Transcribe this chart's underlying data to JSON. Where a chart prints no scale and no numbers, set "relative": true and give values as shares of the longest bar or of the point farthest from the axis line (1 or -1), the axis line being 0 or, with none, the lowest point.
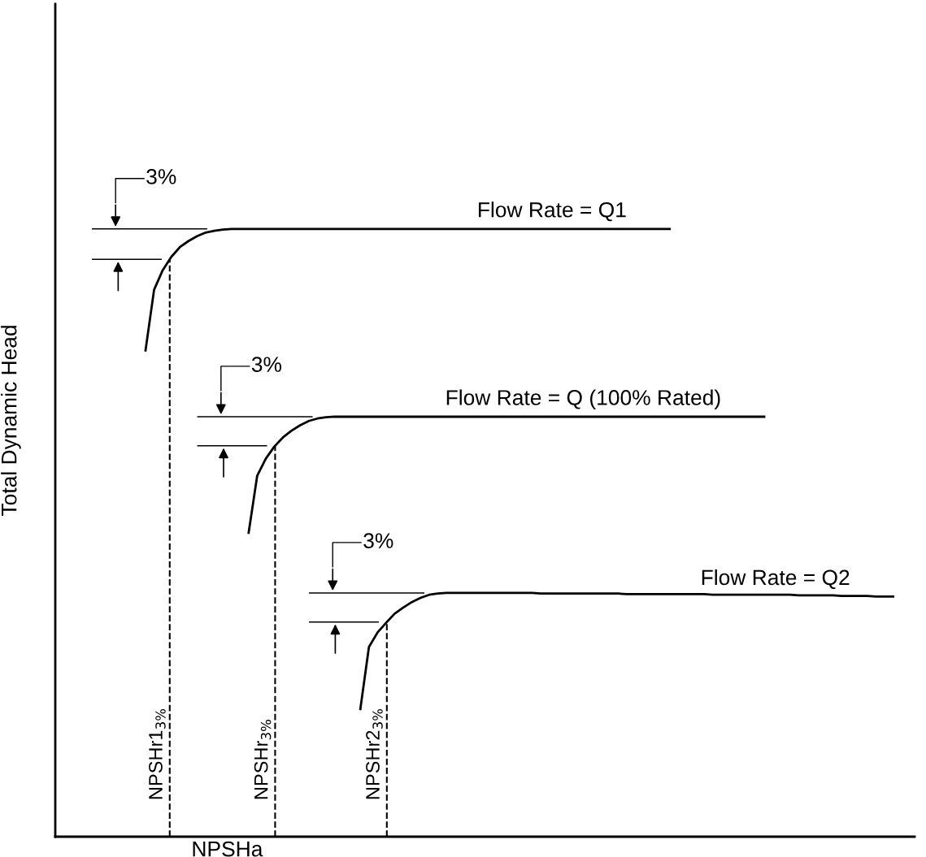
{
  "chart_data": {
    "type": "line",
    "relative": true,
    "xlabel": "NPSHa",
    "ylabel": "Total Dynamic Head",
    "tick_labels": false,
    "marker": "none",
    "line_style": "solid",
    "categories": [
      null,
      null,
      null,
      null,
      null,
      null,
      null,
      null,
      null,
      null,
      null,
      null,
      null,
      null,
      null,
      null,
      null,
      null,
      null,
      null,
      null,
      null,
      null,
      null,
      null,
      null,
      null,
      null,
      null,
      null,
      null,
      null,
      null,
      null,
      null,
      null,
      null,
      null,
      null,
      null,
      null,
      null,
      null,
      null,
      null,
      null,
      null,
      null,
      null,
      null,
      null,
      null,
      null,
      null,
      null,
      null,
      null,
      null,
      null,
      null,
      null,
      null,
      null,
      null,
      null,
      null,
      null,
      null,
      null,
      null,
      null,
      null,
      null,
      null,
      null,
      null,
      null,
      null,
      null,
      null,
      null,
      null,
      null,
      null,
      null,
      null,
      null,
      null,
      null,
      null,
      null,
      null,
      null,
      null,
      null,
      null,
      null,
      null,
      null,
      null
    ],
    "series": [
      {
        "name": "Flow Rate = Q1",
        "color": "#000000",
        "values": [
          null,
          null,
          null,
          null,
          null,
          null,
          null,
          null,
          null,
          null,
          0.8,
          0.9,
          0.932,
          0.954,
          0.97,
          0.98,
          0.988,
          0.994,
          0.997,
          0.999,
          1,
          1,
          1,
          1,
          1,
          1,
          1,
          1,
          1,
          1,
          1,
          1,
          1,
          1,
          1,
          1,
          1,
          1,
          1,
          1,
          1,
          1,
          1,
          1,
          1,
          1,
          1,
          1,
          1,
          1,
          1,
          1,
          1,
          1,
          1,
          1,
          1,
          1,
          1,
          1,
          1,
          1,
          1,
          1,
          1,
          1,
          1,
          1,
          1,
          1,
          1,
          1,
          null,
          null,
          null,
          null,
          null,
          null,
          null,
          null,
          null,
          null,
          null,
          null,
          null,
          null,
          null,
          null,
          null,
          null,
          null,
          null,
          null,
          null,
          null,
          null,
          null,
          null,
          null,
          null
        ]
      },
      {
        "name": "Flow Rate = Q (100% Rated)",
        "color": "#000000",
        "values": [
          null,
          null,
          null,
          null,
          null,
          null,
          null,
          null,
          null,
          null,
          null,
          null,
          null,
          null,
          null,
          null,
          null,
          null,
          null,
          null,
          null,
          null,
          0.5,
          0.594,
          0.622,
          0.642,
          0.657,
          0.668,
          0.677,
          0.684,
          0.688,
          0.69,
          0.691,
          0.691,
          0.691,
          0.691,
          0.691,
          0.691,
          0.691,
          0.691,
          0.691,
          0.691,
          0.691,
          0.691,
          0.691,
          0.691,
          0.691,
          0.691,
          0.691,
          0.691,
          0.691,
          0.691,
          0.691,
          0.691,
          0.691,
          0.691,
          0.691,
          0.691,
          0.691,
          0.691,
          0.691,
          0.691,
          0.691,
          0.691,
          0.691,
          0.691,
          0.691,
          0.691,
          0.691,
          0.691,
          0.691,
          0.691,
          0.691,
          0.691,
          0.691,
          0.691,
          0.691,
          0.691,
          0.691,
          0.691,
          0.691,
          0.691,
          0.691,
          null,
          null,
          null,
          null,
          null,
          null,
          null,
          null,
          null,
          null,
          null,
          null,
          null,
          null,
          null,
          null,
          null
        ]
      },
      {
        "name": "Flow Rate = Q2",
        "color": "#000000",
        "values": [
          null,
          null,
          null,
          null,
          null,
          null,
          null,
          null,
          null,
          null,
          null,
          null,
          null,
          null,
          null,
          null,
          null,
          null,
          null,
          null,
          null,
          null,
          null,
          null,
          null,
          null,
          null,
          null,
          null,
          null,
          null,
          null,
          null,
          null,
          null,
          0.21,
          0.312,
          0.336,
          0.352,
          0.367,
          0.377,
          0.386,
          0.393,
          0.398,
          0.4,
          0.401,
          0.401,
          0.401,
          0.401,
          0.401,
          0.401,
          0.401,
          0.401,
          0.401,
          0.401,
          0.401,
          0.4,
          0.4,
          0.4,
          0.4,
          0.4,
          0.4,
          0.4,
          0.4,
          0.4,
          0.4,
          0.399,
          0.399,
          0.399,
          0.399,
          0.399,
          0.399,
          0.399,
          0.399,
          0.399,
          0.399,
          0.398,
          0.398,
          0.398,
          0.398,
          0.398,
          0.398,
          0.398,
          0.398,
          0.398,
          0.398,
          0.397,
          0.397,
          0.397,
          0.397,
          0.397,
          0.396,
          0.396,
          0.396,
          0.396,
          0.395,
          0.395,
          0.395,
          null,
          null
        ]
      }
    ],
    "annotations": [
      "3%",
      "3%",
      "3%",
      "NPSHr1$_{3%}$",
      "NPSHr$_{3%}$",
      "NPSHr2$_{3%}$"
    ]
  }
}
